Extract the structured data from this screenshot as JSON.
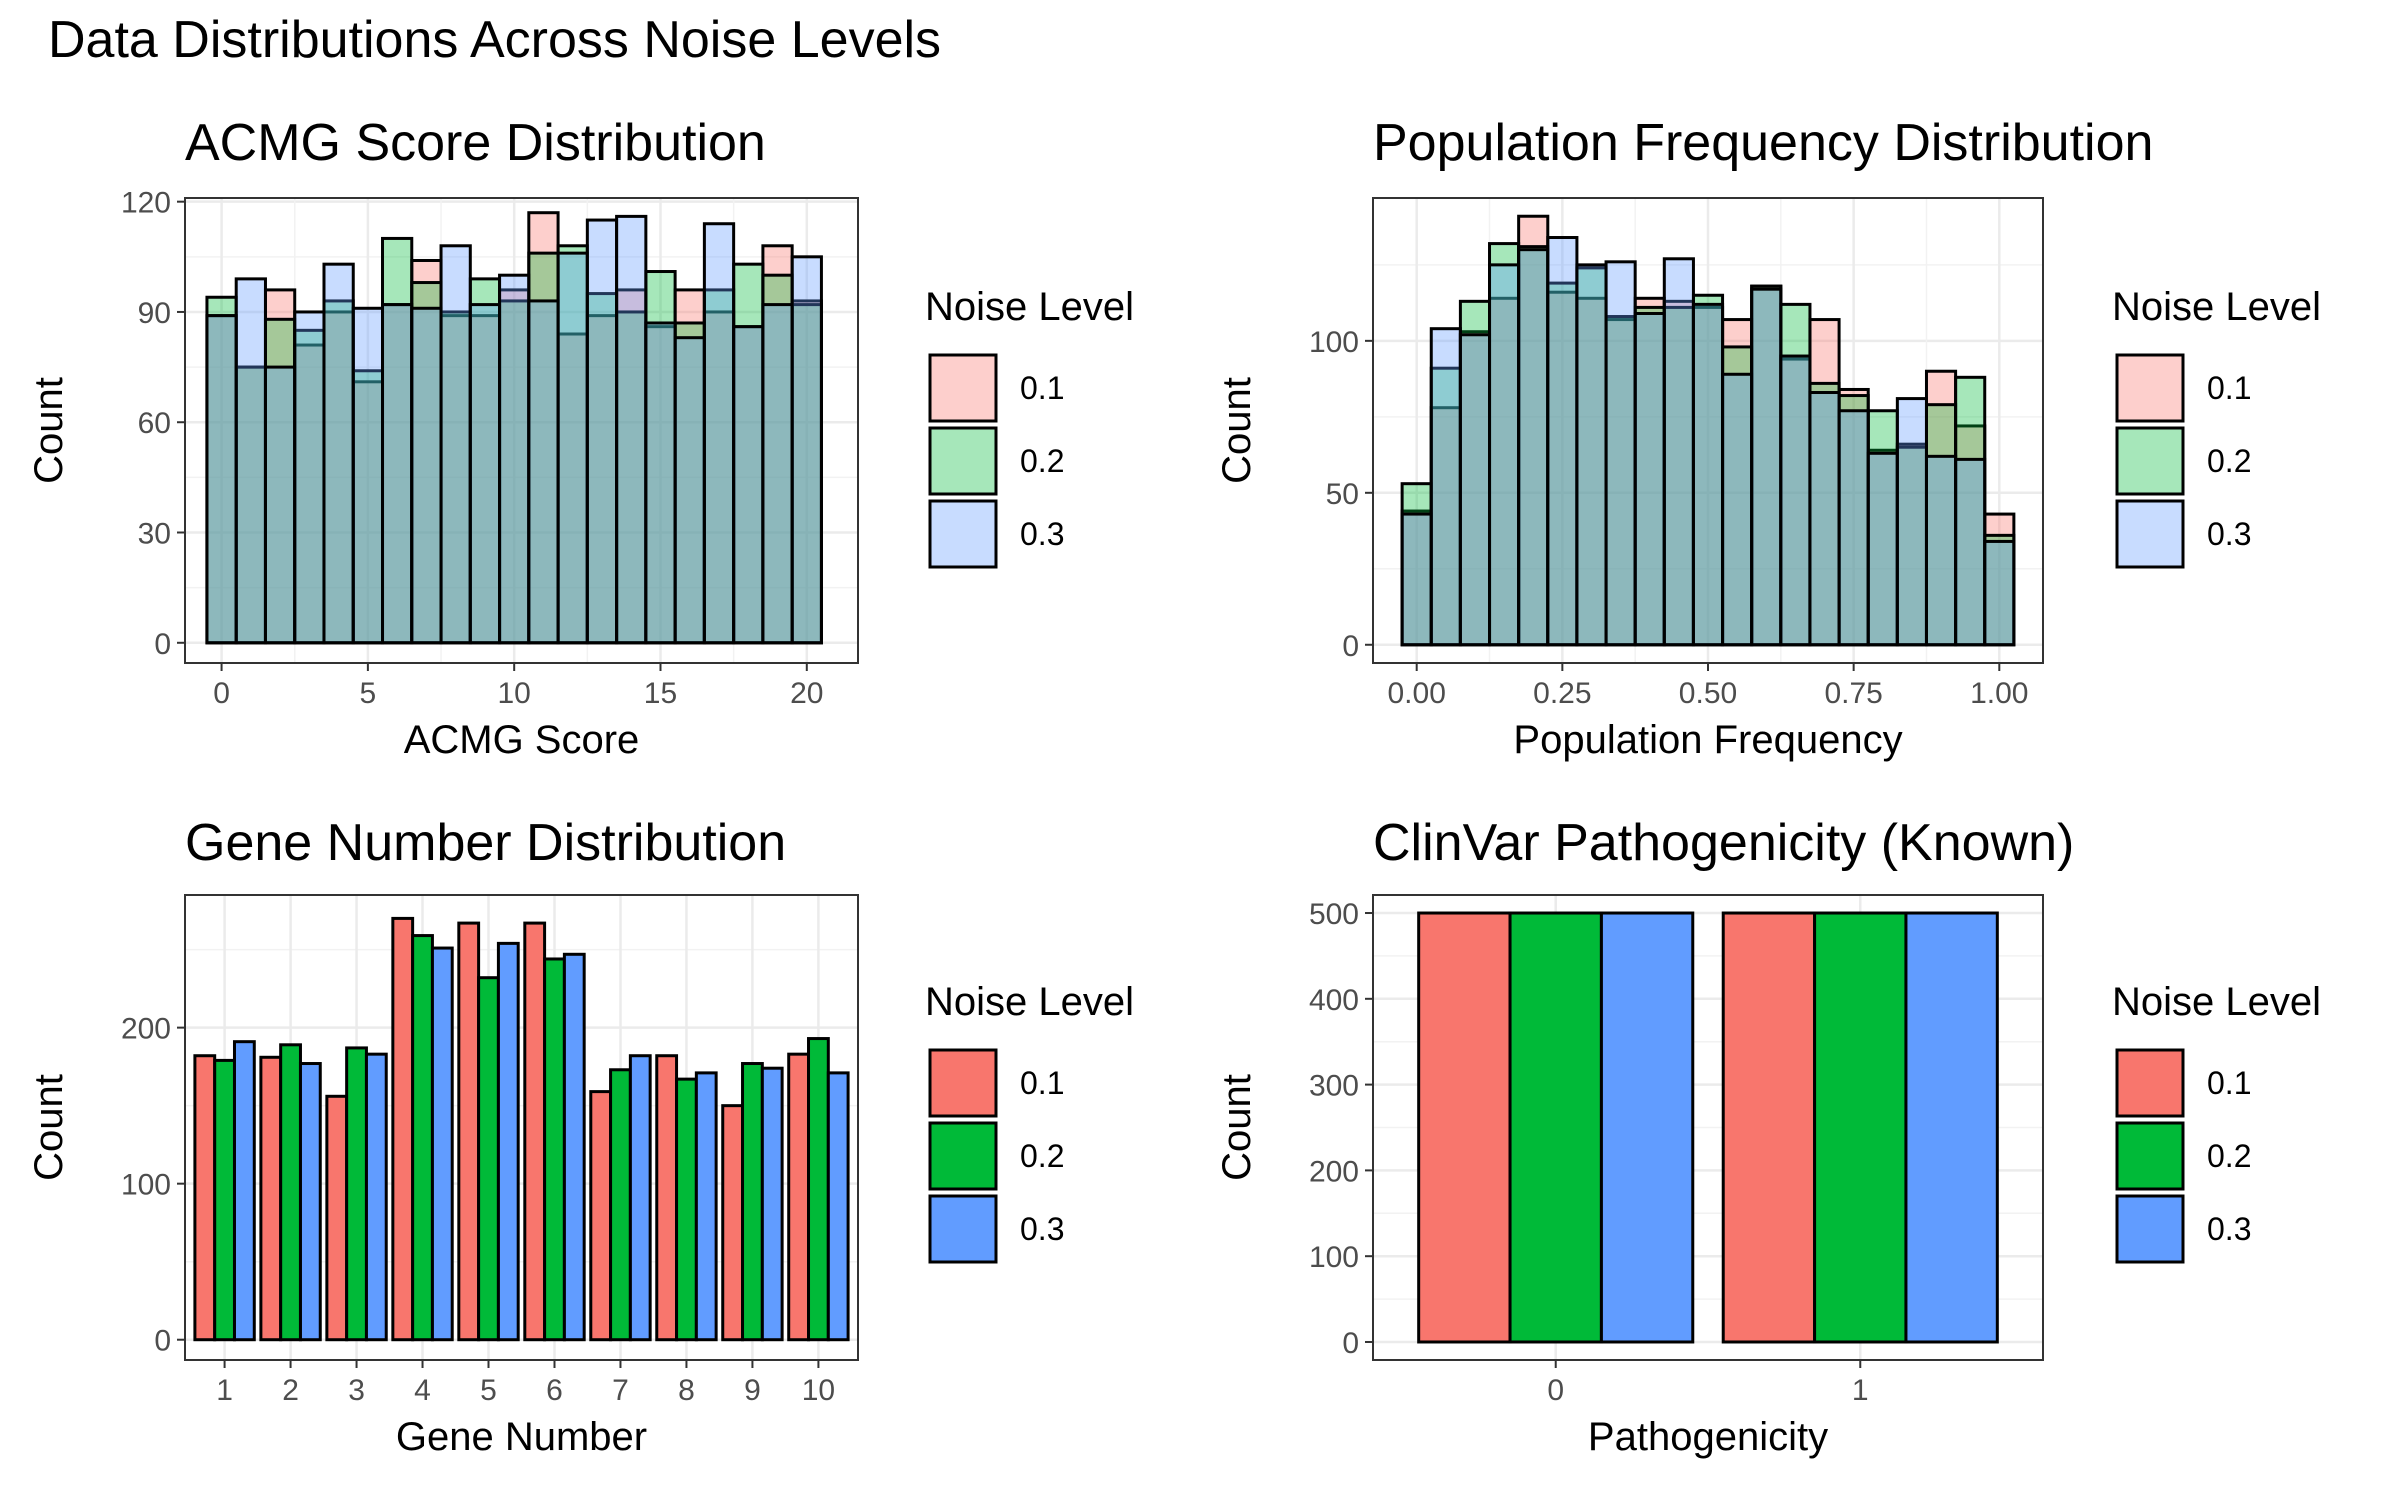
{
  "page_title": "Data Distributions Across Noise Levels",
  "legend_title": "Noise Level",
  "noise_levels": [
    "0.1",
    "0.2",
    "0.3"
  ],
  "colors": {
    "0.1": "#F8766D",
    "0.2": "#00BA38",
    "0.3": "#619CFF"
  },
  "chart_data": [
    {
      "type": "histogram",
      "title": "ACMG Score Distribution",
      "xlabel": "ACMG Score",
      "ylabel": "Count",
      "xlim": [
        -1.25,
        21.75
      ],
      "ylim": [
        -5.5,
        121
      ],
      "xticks": [
        0,
        5,
        10,
        15,
        20
      ],
      "yticks": [
        0,
        30,
        60,
        90,
        120
      ],
      "bin_width": 1,
      "bins": [
        0,
        1,
        2,
        3,
        4,
        5,
        6,
        7,
        8,
        9,
        10,
        11,
        12,
        13,
        14,
        15,
        16,
        17,
        18,
        19,
        20
      ],
      "overlay": true,
      "series": [
        {
          "name": "0.1",
          "values": [
            89,
            75,
            96,
            81,
            90,
            71,
            92,
            104,
            89,
            89,
            96,
            117,
            84,
            89,
            96,
            86,
            96,
            90,
            86,
            108,
            93
          ]
        },
        {
          "name": "0.2",
          "values": [
            94,
            75,
            88,
            85,
            93,
            74,
            110,
            98,
            90,
            99,
            93,
            106,
            108,
            95,
            90,
            101,
            87,
            96,
            103,
            100,
            92
          ]
        },
        {
          "name": "0.3",
          "values": [
            89,
            99,
            75,
            90,
            103,
            91,
            92,
            91,
            108,
            92,
            100,
            93,
            106,
            115,
            116,
            87,
            83,
            114,
            86,
            92,
            105
          ]
        }
      ],
      "legend": "right",
      "grid": true
    },
    {
      "type": "histogram",
      "title": "Population Frequency Distribution",
      "xlabel": "Population Frequency",
      "ylabel": "Count",
      "xlim": [
        -0.075,
        1.075
      ],
      "ylim": [
        -6,
        147
      ],
      "xticks": [
        0.0,
        0.25,
        0.5,
        0.75,
        1.0
      ],
      "xtick_labels": [
        "0.00",
        "0.25",
        "0.50",
        "0.75",
        "1.00"
      ],
      "yticks": [
        0,
        50,
        100
      ],
      "bin_width": 0.05,
      "bins": [
        0.0,
        0.05,
        0.1,
        0.15,
        0.2,
        0.25,
        0.3,
        0.35,
        0.4,
        0.45,
        0.5,
        0.55,
        0.6,
        0.65,
        0.7,
        0.75,
        0.8,
        0.85,
        0.9,
        0.95,
        1.0
      ],
      "overlay": true,
      "series": [
        {
          "name": "0.1",
          "values": [
            44,
            78,
            103,
            114,
            141,
            116,
            114,
            107,
            114,
            113,
            111,
            107,
            118,
            94,
            107,
            84,
            64,
            66,
            90,
            72,
            43
          ]
        },
        {
          "name": "0.2",
          "values": [
            53,
            91,
            113,
            132,
            131,
            119,
            124,
            108,
            111,
            111,
            115,
            98,
            118,
            112,
            86,
            82,
            77,
            65,
            79,
            88,
            36
          ]
        },
        {
          "name": "0.3",
          "values": [
            43,
            104,
            102,
            125,
            130,
            134,
            125,
            126,
            109,
            127,
            112,
            89,
            117,
            95,
            83,
            77,
            63,
            81,
            62,
            61,
            34
          ]
        }
      ],
      "legend": "right",
      "grid": true
    },
    {
      "type": "bar",
      "title": "Gene Number Distribution",
      "xlabel": "Gene Number",
      "ylabel": "Count",
      "categories": [
        "1",
        "2",
        "3",
        "4",
        "5",
        "6",
        "7",
        "8",
        "9",
        "10"
      ],
      "ylim": [
        -13,
        285
      ],
      "yticks": [
        0,
        100,
        200
      ],
      "series": [
        {
          "name": "0.1",
          "values": [
            182,
            181,
            156,
            270,
            267,
            267,
            159,
            182,
            150,
            183
          ]
        },
        {
          "name": "0.2",
          "values": [
            179,
            189,
            187,
            259,
            232,
            244,
            173,
            167,
            177,
            193
          ]
        },
        {
          "name": "0.3",
          "values": [
            191,
            177,
            183,
            251,
            254,
            247,
            182,
            171,
            174,
            171
          ]
        }
      ],
      "legend": "right",
      "grid": true
    },
    {
      "type": "bar",
      "title": "ClinVar Pathogenicity (Known)",
      "xlabel": "Pathogenicity",
      "ylabel": "Count",
      "categories": [
        "0",
        "1"
      ],
      "ylim": [
        -21,
        521
      ],
      "yticks": [
        0,
        100,
        200,
        300,
        400,
        500
      ],
      "series": [
        {
          "name": "0.1",
          "values": [
            500,
            500
          ]
        },
        {
          "name": "0.2",
          "values": [
            500,
            500
          ]
        },
        {
          "name": "0.3",
          "values": [
            500,
            500
          ]
        }
      ],
      "legend": "right",
      "grid": true
    }
  ]
}
